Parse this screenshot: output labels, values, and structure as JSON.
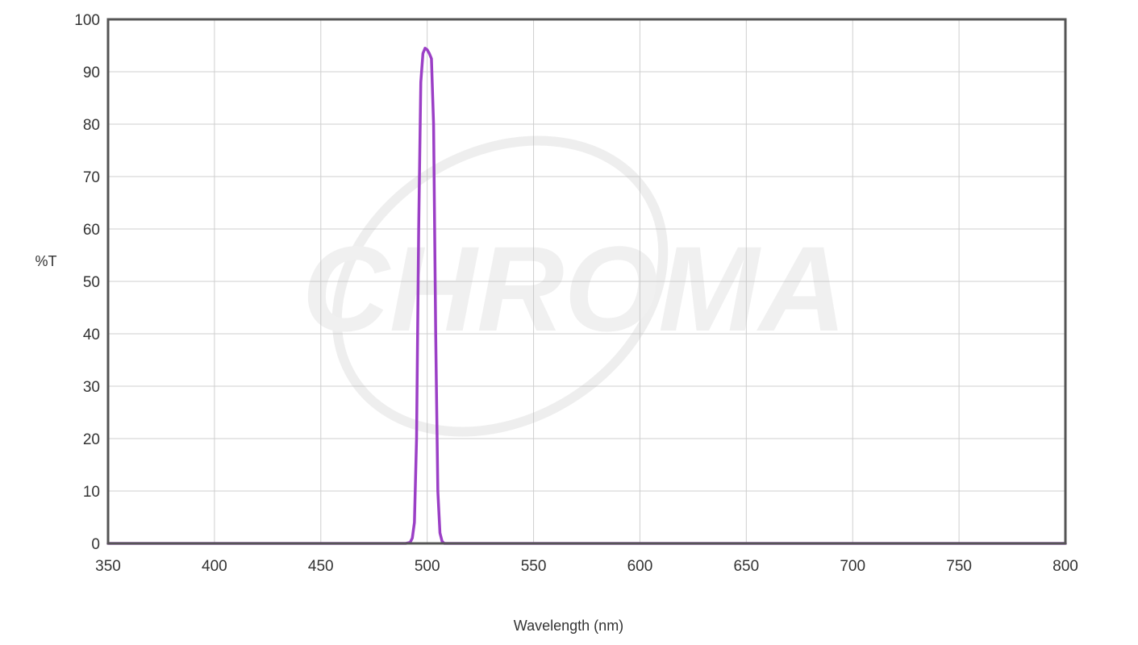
{
  "chart_data": {
    "type": "line",
    "title": "",
    "xlabel": "Wavelength (nm)",
    "ylabel": "%T",
    "xlim": [
      350,
      800
    ],
    "ylim": [
      0,
      100
    ],
    "x_ticks": [
      350,
      400,
      450,
      500,
      550,
      600,
      650,
      700,
      750,
      800
    ],
    "y_ticks": [
      0,
      10,
      20,
      30,
      40,
      50,
      60,
      70,
      80,
      90,
      100
    ],
    "grid": true,
    "legend": "none",
    "watermark": "CHROMA",
    "series": [
      {
        "color": "#9b3fc6",
        "points": [
          [
            350,
            0
          ],
          [
            480,
            0
          ],
          [
            490,
            0
          ],
          [
            492,
            0.2
          ],
          [
            493,
            1
          ],
          [
            494,
            4
          ],
          [
            495,
            20
          ],
          [
            496,
            60
          ],
          [
            497,
            88
          ],
          [
            498,
            93.5
          ],
          [
            499,
            94.5
          ],
          [
            500,
            94.2
          ],
          [
            501,
            93.5
          ],
          [
            502,
            92.5
          ],
          [
            503,
            80
          ],
          [
            504,
            40
          ],
          [
            505,
            10
          ],
          [
            506,
            2
          ],
          [
            507,
            0.4
          ],
          [
            508,
            0
          ],
          [
            520,
            0
          ],
          [
            800,
            0
          ]
        ]
      }
    ]
  }
}
